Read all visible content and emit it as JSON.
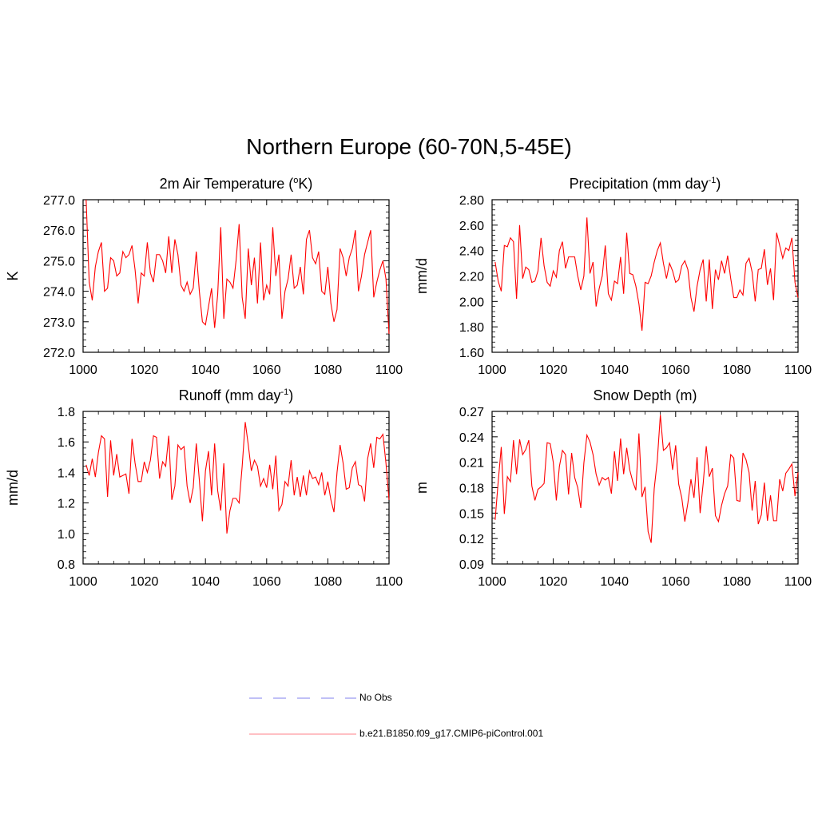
{
  "figure": {
    "title": "Northern Europe (60-70N,5-45E)"
  },
  "legend": {
    "entries": [
      {
        "label": "No Obs",
        "color": "#9a9af0",
        "style": "dashed"
      },
      {
        "label": "b.e21.B1850.f09_g17.CMIP6-piControl.001",
        "color": "#ff0000",
        "style": "solid"
      }
    ]
  },
  "chart_data": [
    {
      "type": "line",
      "title": "2m Air Temperature (",
      "title_sup": "o",
      "title_rest": "K)",
      "xlabel": "",
      "ylabel": "K",
      "xlim": [
        1000,
        1100
      ],
      "ylim": [
        272.0,
        277.0
      ],
      "xticks": [
        "1000",
        "1020",
        "1040",
        "1060",
        "1080",
        "1100"
      ],
      "yticks": [
        "272.0",
        "273.0",
        "274.0",
        "275.0",
        "276.0",
        "277.0"
      ],
      "yticks_values": [
        272,
        273,
        274,
        275,
        276,
        277
      ],
      "x_start": 1001,
      "series": [
        {
          "name": "b.e21.B1850.f09_g17.CMIP6-piControl.001",
          "color": "#ff0000",
          "values": [
            277.0,
            274.3,
            273.7,
            274.8,
            275.3,
            275.6,
            274.0,
            274.1,
            275.1,
            275.0,
            274.5,
            274.6,
            275.3,
            275.1,
            275.2,
            275.5,
            274.7,
            273.6,
            274.6,
            274.5,
            275.6,
            274.6,
            274.3,
            275.2,
            275.2,
            275.0,
            274.6,
            275.8,
            274.6,
            275.7,
            275.2,
            274.2,
            274.0,
            274.3,
            273.9,
            274.1,
            275.3,
            274.0,
            273.0,
            272.9,
            273.5,
            274.1,
            272.8,
            273.9,
            276.1,
            273.1,
            274.4,
            274.3,
            274.1,
            275.0,
            276.2,
            273.8,
            273.1,
            275.4,
            274.2,
            275.1,
            273.6,
            275.6,
            273.7,
            274.2,
            273.9,
            276.1,
            274.5,
            275.2,
            273.1,
            274.0,
            274.4,
            275.2,
            274.1,
            274.2,
            274.8,
            273.9,
            275.7,
            276.0,
            275.1,
            274.9,
            275.3,
            274.0,
            273.9,
            274.8,
            273.6,
            273.0,
            273.4,
            275.4,
            275.1,
            274.5,
            275.1,
            275.4,
            276.0,
            274.0,
            274.5,
            275.2,
            275.6,
            276.0,
            273.8,
            274.3,
            274.7,
            275.0,
            274.4,
            272.6
          ]
        }
      ]
    },
    {
      "type": "line",
      "title": "Precipitation (mm day",
      "title_sup": "-1",
      "title_rest": ")",
      "xlabel": "",
      "ylabel": "mm/d",
      "xlim": [
        1000,
        1100
      ],
      "ylim": [
        1.6,
        2.8
      ],
      "xticks": [
        "1000",
        "1020",
        "1040",
        "1060",
        "1080",
        "1100"
      ],
      "yticks": [
        "1.60",
        "1.80",
        "2.00",
        "2.20",
        "2.40",
        "2.60",
        "2.80"
      ],
      "yticks_values": [
        1.6,
        1.8,
        2.0,
        2.2,
        2.4,
        2.6,
        2.8
      ],
      "x_start": 1001,
      "series": [
        {
          "name": "b.e21.B1850.f09_g17.CMIP6-piControl.001",
          "color": "#ff0000",
          "values": [
            2.31,
            2.16,
            2.08,
            2.44,
            2.43,
            2.5,
            2.47,
            2.02,
            2.6,
            2.18,
            2.27,
            2.25,
            2.15,
            2.16,
            2.24,
            2.5,
            2.28,
            2.15,
            2.12,
            2.24,
            2.19,
            2.4,
            2.47,
            2.26,
            2.35,
            2.35,
            2.35,
            2.2,
            2.09,
            2.2,
            2.66,
            2.22,
            2.31,
            1.96,
            2.1,
            2.2,
            2.44,
            2.06,
            2.01,
            2.16,
            2.14,
            2.35,
            2.06,
            2.54,
            2.22,
            2.21,
            2.12,
            1.98,
            1.77,
            2.15,
            2.14,
            2.2,
            2.31,
            2.4,
            2.46,
            2.3,
            2.18,
            2.3,
            2.24,
            2.15,
            2.17,
            2.28,
            2.32,
            2.25,
            2.03,
            1.92,
            2.12,
            2.25,
            2.33,
            2.0,
            2.33,
            1.94,
            2.25,
            2.17,
            2.32,
            2.22,
            2.36,
            2.18,
            2.03,
            2.03,
            2.09,
            2.05,
            2.3,
            2.34,
            2.23,
            2.0,
            2.25,
            2.26,
            2.41,
            2.13,
            2.26,
            2.01,
            2.54,
            2.44,
            2.34,
            2.42,
            2.4,
            2.5,
            2.15,
            2.03
          ]
        }
      ]
    },
    {
      "type": "line",
      "title": "Runoff (mm day",
      "title_sup": "-1",
      "title_rest": ")",
      "xlabel": "",
      "ylabel": "mm/d",
      "xlim": [
        1000,
        1100
      ],
      "ylim": [
        0.8,
        1.8
      ],
      "xticks": [
        "1000",
        "1020",
        "1040",
        "1060",
        "1080",
        "1100"
      ],
      "yticks": [
        "0.8",
        "1.0",
        "1.2",
        "1.4",
        "1.6",
        "1.8"
      ],
      "yticks_values": [
        0.8,
        1.0,
        1.2,
        1.4,
        1.6,
        1.8
      ],
      "x_start": 1001,
      "series": [
        {
          "name": "b.e21.B1850.f09_g17.CMIP6-piControl.001",
          "color": "#ff0000",
          "values": [
            1.45,
            1.38,
            1.49,
            1.37,
            1.53,
            1.64,
            1.62,
            1.24,
            1.61,
            1.38,
            1.52,
            1.37,
            1.38,
            1.39,
            1.26,
            1.62,
            1.46,
            1.34,
            1.34,
            1.47,
            1.4,
            1.48,
            1.64,
            1.63,
            1.36,
            1.47,
            1.44,
            1.64,
            1.22,
            1.31,
            1.58,
            1.55,
            1.57,
            1.31,
            1.2,
            1.3,
            1.59,
            1.35,
            1.08,
            1.41,
            1.54,
            1.25,
            1.59,
            1.28,
            1.15,
            1.46,
            1.0,
            1.15,
            1.23,
            1.23,
            1.2,
            1.44,
            1.73,
            1.58,
            1.41,
            1.48,
            1.44,
            1.31,
            1.36,
            1.3,
            1.45,
            1.29,
            1.51,
            1.15,
            1.19,
            1.34,
            1.31,
            1.48,
            1.25,
            1.37,
            1.24,
            1.38,
            1.25,
            1.41,
            1.36,
            1.37,
            1.32,
            1.4,
            1.25,
            1.34,
            1.22,
            1.14,
            1.4,
            1.58,
            1.46,
            1.29,
            1.3,
            1.43,
            1.47,
            1.32,
            1.31,
            1.21,
            1.49,
            1.59,
            1.43,
            1.63,
            1.62,
            1.65,
            1.46,
            1.22
          ]
        }
      ]
    },
    {
      "type": "line",
      "title": "Snow Depth (m)",
      "title_sup": "",
      "title_rest": "",
      "xlabel": "",
      "ylabel": "m",
      "xlim": [
        1000,
        1100
      ],
      "ylim": [
        0.09,
        0.27
      ],
      "xticks": [
        "1000",
        "1020",
        "1040",
        "1060",
        "1080",
        "1100"
      ],
      "yticks": [
        "0.09",
        "0.12",
        "0.15",
        "0.18",
        "0.21",
        "0.24",
        "0.27"
      ],
      "yticks_values": [
        0.09,
        0.12,
        0.15,
        0.18,
        0.21,
        0.24,
        0.27
      ],
      "x_start": 1001,
      "series": [
        {
          "name": "b.e21.B1850.f09_g17.CMIP6-piControl.001",
          "color": "#ff0000",
          "values": [
            0.142,
            0.187,
            0.228,
            0.149,
            0.193,
            0.187,
            0.236,
            0.196,
            0.237,
            0.219,
            0.225,
            0.236,
            0.182,
            0.165,
            0.178,
            0.181,
            0.185,
            0.233,
            0.232,
            0.21,
            0.165,
            0.205,
            0.224,
            0.219,
            0.172,
            0.221,
            0.192,
            0.18,
            0.156,
            0.209,
            0.242,
            0.234,
            0.219,
            0.196,
            0.183,
            0.192,
            0.189,
            0.192,
            0.173,
            0.223,
            0.188,
            0.238,
            0.196,
            0.227,
            0.201,
            0.187,
            0.177,
            0.244,
            0.169,
            0.181,
            0.128,
            0.115,
            0.179,
            0.212,
            0.266,
            0.224,
            0.227,
            0.233,
            0.201,
            0.23,
            0.184,
            0.168,
            0.14,
            0.162,
            0.19,
            0.168,
            0.216,
            0.15,
            0.185,
            0.229,
            0.193,
            0.203,
            0.147,
            0.14,
            0.159,
            0.173,
            0.182,
            0.219,
            0.215,
            0.165,
            0.164,
            0.221,
            0.213,
            0.198,
            0.153,
            0.188,
            0.137,
            0.148,
            0.186,
            0.141,
            0.171,
            0.141,
            0.141,
            0.19,
            0.176,
            0.197,
            0.202,
            0.208,
            0.17,
            0.198
          ]
        }
      ]
    }
  ]
}
